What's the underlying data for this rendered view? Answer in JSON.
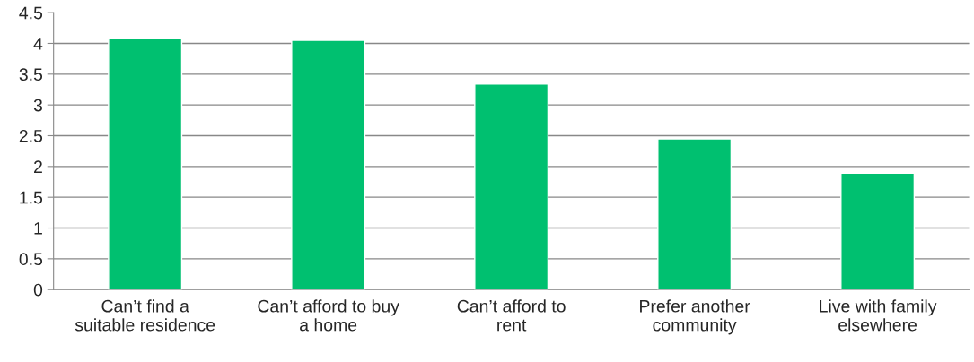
{
  "chart_data": {
    "type": "bar",
    "categories": [
      "Can’t find a\nsuitable residence",
      "Can’t afford to buy\na home",
      "Can’t afford to\nrent",
      "Prefer another\ncommunity",
      "Live with family\nelsewhere"
    ],
    "values": [
      4.08,
      4.05,
      3.34,
      2.45,
      1.89
    ],
    "color": "#00c070",
    "ylim": [
      0,
      4.5
    ],
    "yticks": [
      0,
      0.5,
      1,
      1.5,
      2,
      2.5,
      3,
      3.5,
      4,
      4.5
    ],
    "grid": "y"
  }
}
